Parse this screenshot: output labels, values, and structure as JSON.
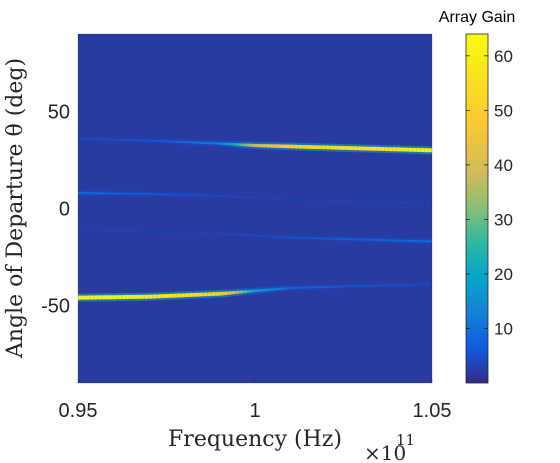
{
  "chart_data": {
    "type": "heatmap",
    "title": "",
    "xlabel": "Frequency (Hz)",
    "ylabel": "Angle of Departure θ (deg)",
    "x_multiplier": "×10",
    "x_multiplier_exponent": "11",
    "xlim": [
      0.95,
      1.05
    ],
    "ylim": [
      -90,
      90
    ],
    "x_ticks": [
      0.95,
      1,
      1.05
    ],
    "x_tick_labels": [
      "0.95",
      "1",
      "1.05"
    ],
    "y_ticks": [
      -50,
      0,
      50
    ],
    "y_tick_labels": [
      "-50",
      "0",
      "50"
    ],
    "colorbar": {
      "title": "Array Gain",
      "colormap": "parula",
      "range": [
        0,
        64
      ],
      "ticks": [
        10,
        20,
        30,
        40,
        50,
        60
      ],
      "tick_labels": [
        "10",
        "20",
        "30",
        "40",
        "50",
        "60"
      ]
    },
    "background_value": 2,
    "beams": [
      {
        "frequency": [
          0.95,
          0.97,
          0.99,
          1.0,
          1.01,
          1.03,
          1.05
        ],
        "angle": [
          -46,
          -45.5,
          -44,
          -42.5,
          -41,
          -40,
          -39
        ],
        "gain": [
          60,
          58,
          50,
          20,
          8,
          5,
          4
        ]
      },
      {
        "frequency": [
          0.95,
          0.97,
          0.99,
          1.0,
          1.01,
          1.03,
          1.05
        ],
        "angle": [
          36,
          35,
          33.5,
          32.5,
          32,
          31,
          30
        ],
        "gain": [
          4,
          5,
          12,
          38,
          50,
          55,
          58
        ]
      },
      {
        "frequency": [
          0.95,
          0.97,
          0.99,
          1.0,
          1.01,
          1.03,
          1.05
        ],
        "angle": [
          8,
          7.5,
          6.5,
          5.5,
          4.5,
          3.5,
          3
        ],
        "gain": [
          9,
          6,
          4,
          3,
          3,
          3,
          3
        ]
      },
      {
        "frequency": [
          0.95,
          0.97,
          0.99,
          1.0,
          1.01,
          1.03,
          1.05
        ],
        "angle": [
          -11,
          -12,
          -13,
          -14,
          -15,
          -16,
          -17
        ],
        "gain": [
          3,
          3,
          3,
          4,
          5,
          7,
          9
        ]
      }
    ]
  }
}
